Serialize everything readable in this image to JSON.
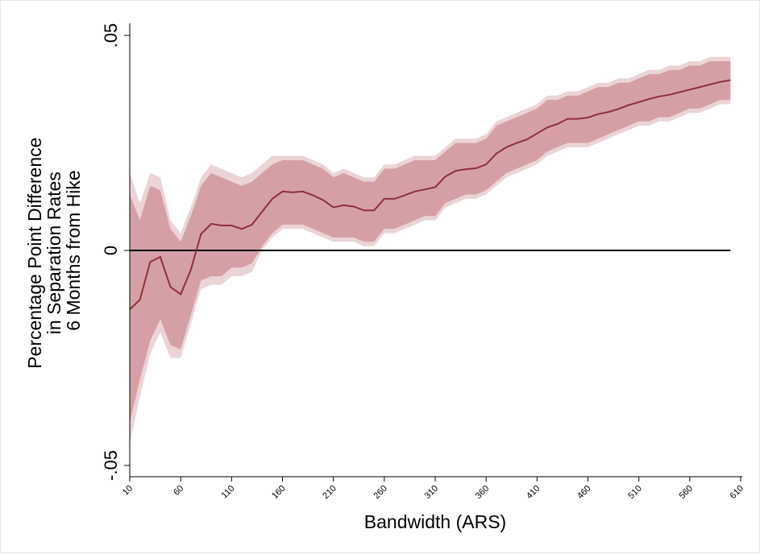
{
  "chart_data": {
    "type": "area",
    "title": "",
    "xlabel": "Bandwidth (ARS)",
    "ylabel_lines": [
      "Percentage Point Difference",
      "in Separation Rates",
      "6 Months from Hike"
    ],
    "xlim": [
      10,
      610
    ],
    "ylim": [
      -0.05,
      0.05
    ],
    "xticks": [
      10,
      60,
      110,
      160,
      210,
      260,
      310,
      360,
      410,
      460,
      510,
      560,
      610
    ],
    "yticks": [
      {
        "value": 0.05,
        "label": ".05"
      },
      {
        "value": 0,
        "label": "0"
      },
      {
        "value": -0.05,
        "label": "-.05"
      }
    ],
    "reference_line": 0,
    "grid": false,
    "legend": "none",
    "colors": {
      "estimate": "#8f2f3c",
      "ci_inner": "#d4a0a6",
      "ci_outer": "#ead4d6",
      "reference": "#000000"
    },
    "x": [
      10,
      20,
      30,
      40,
      50,
      60,
      70,
      80,
      90,
      100,
      110,
      120,
      130,
      140,
      150,
      160,
      170,
      180,
      190,
      200,
      210,
      220,
      230,
      240,
      250,
      260,
      270,
      280,
      290,
      300,
      310,
      320,
      330,
      340,
      350,
      360,
      370,
      380,
      390,
      400,
      410,
      420,
      430,
      440,
      450,
      460,
      470,
      480,
      490,
      500,
      510,
      520,
      530,
      540,
      550,
      560,
      570,
      580,
      590,
      600
    ],
    "series": [
      {
        "role": "estimate",
        "values": [
          -0.0137,
          -0.0115,
          -0.0027,
          -0.0015,
          -0.0085,
          -0.0102,
          -0.0045,
          0.0038,
          0.0062,
          0.0058,
          0.0058,
          0.005,
          0.006,
          0.009,
          0.012,
          0.0137,
          0.0135,
          0.0137,
          0.0128,
          0.0117,
          0.01,
          0.0105,
          0.0102,
          0.0093,
          0.0093,
          0.012,
          0.012,
          0.0128,
          0.0137,
          0.0142,
          0.0147,
          0.0172,
          0.0185,
          0.0189,
          0.0191,
          0.02,
          0.0225,
          0.024,
          0.025,
          0.0258,
          0.0272,
          0.0286,
          0.0294,
          0.0306,
          0.0306,
          0.0309,
          0.0317,
          0.0322,
          0.0329,
          0.0338,
          0.0345,
          0.0352,
          0.0358,
          0.0362,
          0.0368,
          0.0374,
          0.038,
          0.0386,
          0.0392,
          0.0396
        ]
      },
      {
        "role": "ci_inner_lower",
        "values": [
          -0.04,
          -0.03,
          -0.021,
          -0.016,
          -0.022,
          -0.023,
          -0.015,
          -0.007,
          -0.006,
          -0.006,
          -0.004,
          -0.004,
          -0.003,
          0.001,
          0.004,
          0.006,
          0.006,
          0.006,
          0.005,
          0.004,
          0.003,
          0.003,
          0.003,
          0.002,
          0.002,
          0.005,
          0.005,
          0.006,
          0.007,
          0.008,
          0.008,
          0.011,
          0.012,
          0.013,
          0.013,
          0.014,
          0.016,
          0.018,
          0.019,
          0.02,
          0.021,
          0.023,
          0.024,
          0.025,
          0.025,
          0.025,
          0.026,
          0.027,
          0.028,
          0.029,
          0.03,
          0.03,
          0.031,
          0.031,
          0.032,
          0.033,
          0.033,
          0.034,
          0.035,
          0.035
        ]
      },
      {
        "role": "ci_inner_upper",
        "values": [
          0.013,
          0.007,
          0.015,
          0.014,
          0.005,
          0.002,
          0.008,
          0.015,
          0.018,
          0.017,
          0.016,
          0.015,
          0.016,
          0.018,
          0.02,
          0.021,
          0.021,
          0.021,
          0.02,
          0.019,
          0.017,
          0.018,
          0.017,
          0.016,
          0.016,
          0.019,
          0.019,
          0.02,
          0.021,
          0.021,
          0.021,
          0.023,
          0.025,
          0.025,
          0.025,
          0.026,
          0.029,
          0.03,
          0.031,
          0.032,
          0.033,
          0.035,
          0.035,
          0.036,
          0.036,
          0.037,
          0.038,
          0.038,
          0.039,
          0.039,
          0.04,
          0.041,
          0.041,
          0.042,
          0.042,
          0.043,
          0.043,
          0.044,
          0.044,
          0.044
        ]
      },
      {
        "role": "ci_outer_lower",
        "values": [
          -0.045,
          -0.034,
          -0.024,
          -0.019,
          -0.025,
          -0.025,
          -0.017,
          -0.009,
          -0.008,
          -0.008,
          -0.006,
          -0.006,
          -0.005,
          0.0,
          0.003,
          0.005,
          0.005,
          0.005,
          0.004,
          0.003,
          0.002,
          0.002,
          0.002,
          0.001,
          0.001,
          0.004,
          0.004,
          0.005,
          0.006,
          0.007,
          0.007,
          0.01,
          0.011,
          0.012,
          0.012,
          0.013,
          0.015,
          0.017,
          0.018,
          0.019,
          0.02,
          0.022,
          0.023,
          0.024,
          0.024,
          0.024,
          0.025,
          0.026,
          0.027,
          0.028,
          0.029,
          0.029,
          0.03,
          0.03,
          0.031,
          0.032,
          0.032,
          0.033,
          0.034,
          0.034
        ]
      },
      {
        "role": "ci_outer_upper",
        "values": [
          0.018,
          0.011,
          0.018,
          0.017,
          0.007,
          0.004,
          0.01,
          0.017,
          0.02,
          0.019,
          0.018,
          0.017,
          0.018,
          0.02,
          0.022,
          0.022,
          0.022,
          0.022,
          0.021,
          0.02,
          0.018,
          0.019,
          0.018,
          0.017,
          0.017,
          0.02,
          0.02,
          0.021,
          0.022,
          0.022,
          0.022,
          0.024,
          0.026,
          0.026,
          0.026,
          0.027,
          0.03,
          0.031,
          0.032,
          0.033,
          0.034,
          0.036,
          0.036,
          0.037,
          0.037,
          0.038,
          0.039,
          0.039,
          0.04,
          0.04,
          0.041,
          0.042,
          0.042,
          0.043,
          0.043,
          0.044,
          0.044,
          0.045,
          0.045,
          0.045
        ]
      }
    ]
  }
}
